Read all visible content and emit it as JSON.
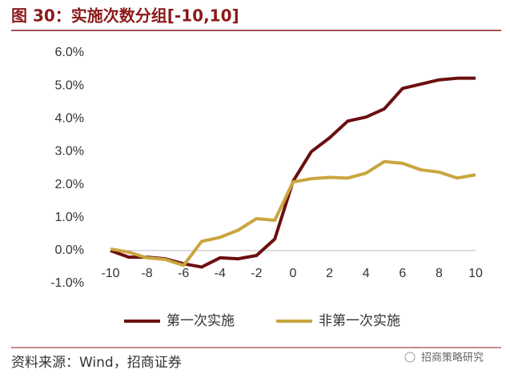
{
  "chart_data": {
    "type": "line",
    "title": "图 30：实施次数分组[-10,10]",
    "x": [
      -10,
      -9,
      -8,
      -7,
      -6,
      -5,
      -4,
      -3,
      -2,
      -1,
      0,
      1,
      2,
      3,
      4,
      5,
      6,
      7,
      8,
      9,
      10
    ],
    "series": [
      {
        "name": "第一次实施",
        "color": "#6b0f10",
        "values": [
          0.0,
          -0.2,
          -0.2,
          -0.25,
          -0.4,
          -0.5,
          -0.22,
          -0.25,
          -0.15,
          0.35,
          2.1,
          3.0,
          3.42,
          3.93,
          4.05,
          4.3,
          4.92,
          5.05,
          5.18,
          5.23,
          5.23
        ]
      },
      {
        "name": "非第一次实施",
        "color": "#c9a640",
        "values": [
          0.05,
          -0.05,
          -0.22,
          -0.27,
          -0.45,
          0.28,
          0.4,
          0.62,
          0.97,
          0.92,
          2.08,
          2.18,
          2.22,
          2.2,
          2.35,
          2.7,
          2.65,
          2.45,
          2.38,
          2.2,
          2.3
        ]
      }
    ],
    "xlim": [
      -10,
      10
    ],
    "xticks": [
      -10,
      -8,
      -6,
      -4,
      -2,
      0,
      2,
      4,
      6,
      8,
      10
    ],
    "ylim": [
      -1,
      6
    ],
    "yticks": [
      {
        "value": -1,
        "label": "-1.0%"
      },
      {
        "value": 0,
        "label": "0.0%"
      },
      {
        "value": 1,
        "label": "1.0%"
      },
      {
        "value": 2,
        "label": "2.0%"
      },
      {
        "value": 3,
        "label": "3.0%"
      },
      {
        "value": 4,
        "label": "4.0%"
      },
      {
        "value": 5,
        "label": "5.0%"
      },
      {
        "value": 6,
        "label": "6.0%"
      }
    ],
    "grid": false,
    "legend": "bottom"
  },
  "footer": {
    "source": "资料来源：Wind，招商证券",
    "watermark": "招商策略研究"
  }
}
